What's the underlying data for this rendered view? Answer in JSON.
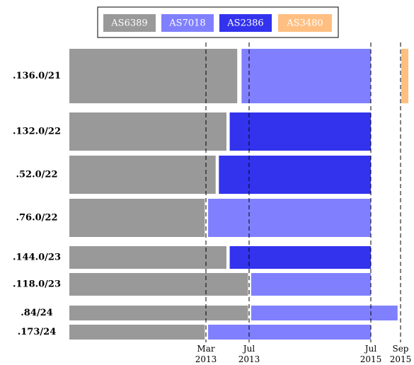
{
  "chart_data": {
    "type": "timeline",
    "series": [
      {
        "name": "AS6389",
        "color": "#999999"
      },
      {
        "name": "AS7018",
        "color": "#8080ff"
      },
      {
        "name": "AS2386",
        "color": "#3333ee"
      },
      {
        "name": "AS3480",
        "color": "#ffbf80"
      }
    ],
    "xlim": [
      -10,
      33
    ],
    "xticks": [
      {
        "value": 2,
        "label": "Mar 2013"
      },
      {
        "value": 6,
        "label": "Jul 2013"
      },
      {
        "value": 30,
        "label": "Jul 2015"
      },
      {
        "value": 32,
        "label": "Sep 2015"
      }
    ],
    "rows": [
      {
        "label": ".136.0/21",
        "segments": [
          {
            "series": "AS6389",
            "start": -10,
            "end": 4.9
          },
          {
            "series": "AS7018",
            "start": 5.3,
            "end": 30
          },
          {
            "series": "AS3480",
            "start": 32.1,
            "end": 33
          }
        ]
      },
      {
        "label": ".132.0/22",
        "segments": [
          {
            "series": "AS6389",
            "start": -10,
            "end": 3.9
          },
          {
            "series": "AS2386",
            "start": 4.2,
            "end": 30
          }
        ]
      },
      {
        "label": ".52.0/22",
        "segments": [
          {
            "series": "AS6389",
            "start": -10,
            "end": 2.9
          },
          {
            "series": "AS2386",
            "start": 3.2,
            "end": 30
          }
        ]
      },
      {
        "label": ".76.0/22",
        "segments": [
          {
            "series": "AS6389",
            "start": -10,
            "end": 1.9
          },
          {
            "series": "AS7018",
            "start": 2.2,
            "end": 30
          }
        ]
      },
      {
        "label": ".144.0/23",
        "segments": [
          {
            "series": "AS6389",
            "start": -10,
            "end": 3.9
          },
          {
            "series": "AS2386",
            "start": 4.2,
            "end": 30
          }
        ]
      },
      {
        "label": ".118.0/23",
        "segments": [
          {
            "series": "AS6389",
            "start": -10,
            "end": 5.9
          },
          {
            "series": "AS7018",
            "start": 6.4,
            "end": 30
          }
        ]
      },
      {
        "label": ".84/24",
        "segments": [
          {
            "series": "AS6389",
            "start": -10,
            "end": 5.9
          },
          {
            "series": "AS7018",
            "start": 6.4,
            "end": 31.8
          }
        ]
      },
      {
        "label": ".173/24",
        "segments": [
          {
            "series": "AS6389",
            "start": -10,
            "end": 1.9
          },
          {
            "series": "AS7018",
            "start": 2.2,
            "end": 30
          }
        ]
      }
    ]
  }
}
